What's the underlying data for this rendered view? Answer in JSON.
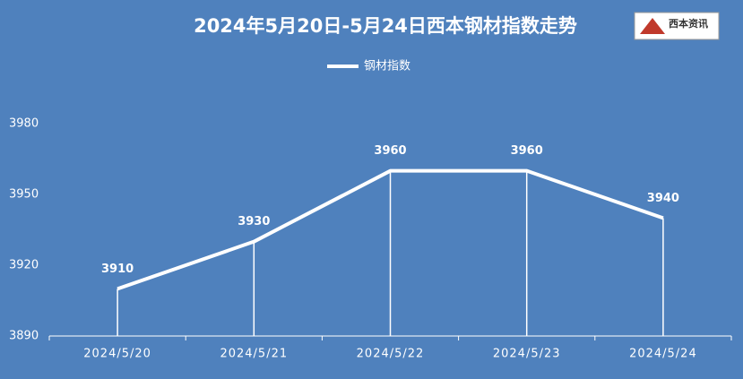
{
  "chart_data": {
    "type": "line",
    "title": "2024年5月20日-5月24日西本钢材指数走势",
    "logo": "西本资讯",
    "categories": [
      "2024/5/20",
      "2024/5/21",
      "2024/5/22",
      "2024/5/23",
      "2024/5/24"
    ],
    "series": [
      {
        "name": "钢材指数",
        "color": "#ffffff",
        "values": [
          3910,
          3930,
          3960,
          3960,
          3940
        ]
      }
    ],
    "ylim": [
      3890,
      3980
    ],
    "yticks": [
      3890,
      3920,
      3950,
      3980
    ],
    "grid": false,
    "drop_lines": true,
    "data_labels": true,
    "legend": "top"
  }
}
